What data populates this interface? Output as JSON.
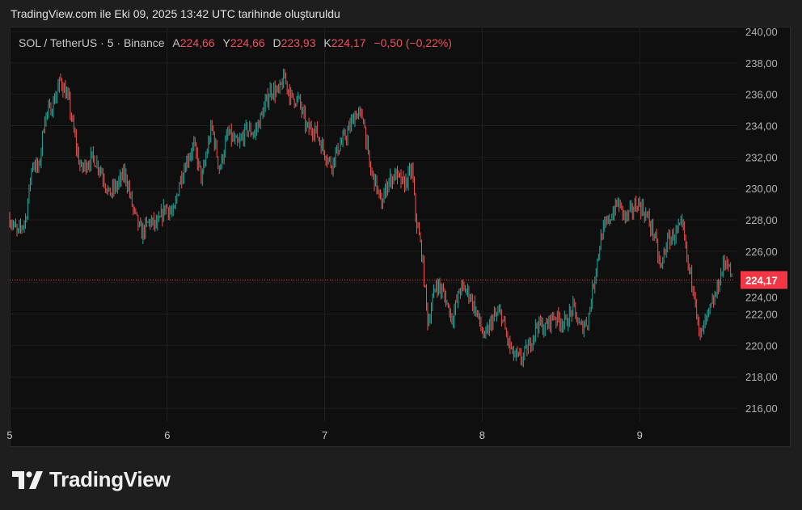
{
  "caption": "TradingView.com ile Eki 09, 2025 13:42 UTC tarihinde oluşturuldu",
  "legend": {
    "symbol": "SOL / TetherUS · 5 · Binance",
    "open_label": "A",
    "open": "224,66",
    "high_label": "Y",
    "high": "224,66",
    "low_label": "D",
    "low": "223,93",
    "close_label": "K",
    "close": "224,17",
    "change": "−0,50 (−0,22%)"
  },
  "logo": {
    "text": "TradingView"
  },
  "colors": {
    "up": "#26a69a",
    "down": "#ef5350",
    "last_price": "#f23645",
    "background": "#0f0f0f"
  },
  "chart_data": {
    "type": "candlestick",
    "title": "SOL / TetherUS · 5 · Binance",
    "interval": "5",
    "xlabel": "",
    "ylabel": "",
    "x_ticks": [
      {
        "value": 5,
        "label": "5"
      },
      {
        "value": 6,
        "label": "6"
      },
      {
        "value": 7,
        "label": "7"
      },
      {
        "value": 8,
        "label": "8"
      },
      {
        "value": 9,
        "label": "9"
      }
    ],
    "y_ticks": [
      "240,00",
      "238,00",
      "236,00",
      "234,00",
      "232,00",
      "230,00",
      "228,00",
      "226,00",
      "224,00",
      "222,00",
      "220,00",
      "218,00",
      "216,00"
    ],
    "y_tick_values": [
      240,
      238,
      236,
      234,
      232,
      230,
      228,
      226,
      224,
      222,
      220,
      218,
      216
    ],
    "ylim": [
      215.2,
      240.2
    ],
    "xlim": [
      5.0,
      9.62
    ],
    "grid": true,
    "last_price": 224.17,
    "last_price_label": "224,17",
    "close_path": [
      [
        5.0,
        228.1
      ],
      [
        5.051,
        227.1
      ],
      [
        5.103,
        228.1
      ],
      [
        5.144,
        231.7
      ],
      [
        5.185,
        231.2
      ],
      [
        5.221,
        234.5
      ],
      [
        5.272,
        235.3
      ],
      [
        5.323,
        236.9
      ],
      [
        5.374,
        235.6
      ],
      [
        5.426,
        232.5
      ],
      [
        5.451,
        231.2
      ],
      [
        5.528,
        232.0
      ],
      [
        5.579,
        231.2
      ],
      [
        5.631,
        229.6
      ],
      [
        5.682,
        230.2
      ],
      [
        5.733,
        231.0
      ],
      [
        5.785,
        228.6
      ],
      [
        5.836,
        227.1
      ],
      [
        5.887,
        227.9
      ],
      [
        5.938,
        227.6
      ],
      [
        5.99,
        228.9
      ],
      [
        6.041,
        228.3
      ],
      [
        6.077,
        230.4
      ],
      [
        6.128,
        231.9
      ],
      [
        6.169,
        232.7
      ],
      [
        6.221,
        230.6
      ],
      [
        6.282,
        234.0
      ],
      [
        6.333,
        231.2
      ],
      [
        6.385,
        233.5
      ],
      [
        6.451,
        232.7
      ],
      [
        6.503,
        233.8
      ],
      [
        6.554,
        233.5
      ],
      [
        6.605,
        234.8
      ],
      [
        6.656,
        236.3
      ],
      [
        6.708,
        236.1
      ],
      [
        6.744,
        237.1
      ],
      [
        6.785,
        235.8
      ],
      [
        6.836,
        235.6
      ],
      [
        6.887,
        233.8
      ],
      [
        6.938,
        233.8
      ],
      [
        6.99,
        232.5
      ],
      [
        7.041,
        231.5
      ],
      [
        7.092,
        232.7
      ],
      [
        7.144,
        233.5
      ],
      [
        7.195,
        234.8
      ],
      [
        7.246,
        234.5
      ],
      [
        7.287,
        231.2
      ],
      [
        7.323,
        230.4
      ],
      [
        7.359,
        228.9
      ],
      [
        7.4,
        230.4
      ],
      [
        7.451,
        230.9
      ],
      [
        7.503,
        230.2
      ],
      [
        7.554,
        231.2
      ],
      [
        7.579,
        228.1
      ],
      [
        7.615,
        226.0
      ],
      [
        7.656,
        221.4
      ],
      [
        7.708,
        224.0
      ],
      [
        7.759,
        223.2
      ],
      [
        7.81,
        221.7
      ],
      [
        7.862,
        223.7
      ],
      [
        7.913,
        223.4
      ],
      [
        7.964,
        222.1
      ],
      [
        8.015,
        220.4
      ],
      [
        8.067,
        221.7
      ],
      [
        8.118,
        222.1
      ],
      [
        8.159,
        220.4
      ],
      [
        8.195,
        219.4
      ],
      [
        8.246,
        219.1
      ],
      [
        8.297,
        219.9
      ],
      [
        8.349,
        221.4
      ],
      [
        8.4,
        221.1
      ],
      [
        8.451,
        221.9
      ],
      [
        8.528,
        221.4
      ],
      [
        8.579,
        222.4
      ],
      [
        8.621,
        221.1
      ],
      [
        8.672,
        221.6
      ],
      [
        8.723,
        225.0
      ],
      [
        8.759,
        227.1
      ],
      [
        8.81,
        228.1
      ],
      [
        8.862,
        229.1
      ],
      [
        8.913,
        228.1
      ],
      [
        8.99,
        229.1
      ],
      [
        9.041,
        228.3
      ],
      [
        9.092,
        227.1
      ],
      [
        9.133,
        224.8
      ],
      [
        9.169,
        226.5
      ],
      [
        9.221,
        227.1
      ],
      [
        9.272,
        227.6
      ],
      [
        9.308,
        225.0
      ],
      [
        9.349,
        223.5
      ],
      [
        9.379,
        220.4
      ],
      [
        9.426,
        221.7
      ],
      [
        9.477,
        223.0
      ],
      [
        9.528,
        225.0
      ],
      [
        9.554,
        225.5
      ],
      [
        9.585,
        224.17
      ]
    ]
  }
}
